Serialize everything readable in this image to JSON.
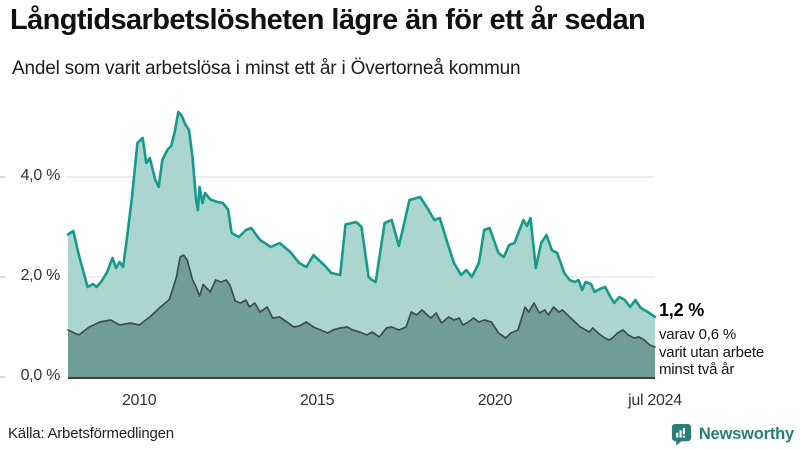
{
  "header": {
    "title": "Långtidsarbetslösheten lägre än för ett år sedan",
    "subtitle": "Andel som varit arbetslösa i minst ett år i Övertorneå kommun"
  },
  "colors": {
    "background": "#ffffff",
    "gridline": "#d9d9d9",
    "axis": "#39423f",
    "tick": "#b0b0b0",
    "brand_teal": "#2a7e78"
  },
  "chart_data": {
    "type": "area",
    "title": "Långtidsarbetslösheten lägre än för ett år sedan",
    "subtitle": "Andel som varit arbetslösa i minst ett år i Övertorneå kommun",
    "grid": "horizontal-only",
    "legend": "none",
    "x_axis": {
      "range": [
        2008.0,
        2024.5
      ],
      "ticks": [
        {
          "label": "2010",
          "t": 2010.0
        },
        {
          "label": "2015",
          "t": 2015.0
        },
        {
          "label": "2020",
          "t": 2020.0
        },
        {
          "label": "jul 2024",
          "t": 2024.5
        }
      ]
    },
    "y_axis": {
      "unit": "%",
      "range": [
        0,
        5.44
      ],
      "ticks": [
        {
          "label": "0,0 %",
          "v": 0
        },
        {
          "label": "2,0 %",
          "v": 2
        },
        {
          "label": "4,0 %",
          "v": 4
        }
      ]
    },
    "annotation": {
      "value_label": "1,2 %",
      "lines": [
        "varav 0,6 %",
        "varit utan arbete",
        "minst två år"
      ]
    },
    "series": [
      {
        "id": "minst-ett-ar",
        "name": "Arbetslösa minst ett år",
        "color": "#17998d",
        "fill": "#aad6cf",
        "stroke_width": 2.6,
        "last_value": "1,2 %",
        "points": [
          [
            2008.0,
            2.85
          ],
          [
            2008.15,
            2.92
          ],
          [
            2008.3,
            2.45
          ],
          [
            2008.55,
            1.8
          ],
          [
            2008.7,
            1.86
          ],
          [
            2008.8,
            1.8
          ],
          [
            2008.95,
            1.92
          ],
          [
            2009.1,
            2.1
          ],
          [
            2009.25,
            2.38
          ],
          [
            2009.35,
            2.18
          ],
          [
            2009.45,
            2.3
          ],
          [
            2009.55,
            2.2
          ],
          [
            2009.65,
            2.74
          ],
          [
            2009.8,
            3.6
          ],
          [
            2009.95,
            4.68
          ],
          [
            2010.1,
            4.78
          ],
          [
            2010.2,
            4.28
          ],
          [
            2010.3,
            4.38
          ],
          [
            2010.45,
            3.95
          ],
          [
            2010.55,
            3.8
          ],
          [
            2010.65,
            4.34
          ],
          [
            2010.8,
            4.55
          ],
          [
            2010.9,
            4.62
          ],
          [
            2011.0,
            4.9
          ],
          [
            2011.1,
            5.3
          ],
          [
            2011.2,
            5.22
          ],
          [
            2011.3,
            5.05
          ],
          [
            2011.4,
            4.94
          ],
          [
            2011.5,
            4.4
          ],
          [
            2011.6,
            3.54
          ],
          [
            2011.65,
            3.34
          ],
          [
            2011.7,
            3.8
          ],
          [
            2011.78,
            3.48
          ],
          [
            2011.85,
            3.68
          ],
          [
            2012.0,
            3.55
          ],
          [
            2012.2,
            3.5
          ],
          [
            2012.35,
            3.48
          ],
          [
            2012.5,
            3.35
          ],
          [
            2012.6,
            2.88
          ],
          [
            2012.8,
            2.8
          ],
          [
            2013.0,
            2.94
          ],
          [
            2013.15,
            2.98
          ],
          [
            2013.4,
            2.74
          ],
          [
            2013.7,
            2.6
          ],
          [
            2013.95,
            2.68
          ],
          [
            2014.25,
            2.5
          ],
          [
            2014.5,
            2.28
          ],
          [
            2014.7,
            2.2
          ],
          [
            2014.9,
            2.44
          ],
          [
            2015.2,
            2.24
          ],
          [
            2015.4,
            2.08
          ],
          [
            2015.65,
            2.04
          ],
          [
            2015.8,
            3.05
          ],
          [
            2016.1,
            3.1
          ],
          [
            2016.25,
            3.0
          ],
          [
            2016.45,
            2.0
          ],
          [
            2016.55,
            1.94
          ],
          [
            2016.65,
            1.9
          ],
          [
            2016.9,
            3.08
          ],
          [
            2017.1,
            3.14
          ],
          [
            2017.3,
            2.62
          ],
          [
            2017.6,
            3.54
          ],
          [
            2017.9,
            3.6
          ],
          [
            2018.1,
            3.38
          ],
          [
            2018.3,
            3.14
          ],
          [
            2018.45,
            3.18
          ],
          [
            2018.7,
            2.6
          ],
          [
            2018.85,
            2.28
          ],
          [
            2019.05,
            2.04
          ],
          [
            2019.2,
            2.14
          ],
          [
            2019.35,
            2.0
          ],
          [
            2019.55,
            2.28
          ],
          [
            2019.7,
            2.94
          ],
          [
            2019.85,
            2.98
          ],
          [
            2020.1,
            2.48
          ],
          [
            2020.25,
            2.4
          ],
          [
            2020.4,
            2.64
          ],
          [
            2020.55,
            2.68
          ],
          [
            2020.8,
            3.14
          ],
          [
            2020.9,
            3.02
          ],
          [
            2021.0,
            3.18
          ],
          [
            2021.15,
            2.18
          ],
          [
            2021.3,
            2.68
          ],
          [
            2021.45,
            2.84
          ],
          [
            2021.6,
            2.54
          ],
          [
            2021.75,
            2.48
          ],
          [
            2021.95,
            2.08
          ],
          [
            2022.1,
            1.94
          ],
          [
            2022.25,
            1.9
          ],
          [
            2022.35,
            1.94
          ],
          [
            2022.45,
            1.74
          ],
          [
            2022.55,
            1.9
          ],
          [
            2022.7,
            1.86
          ],
          [
            2022.8,
            1.7
          ],
          [
            2022.95,
            1.76
          ],
          [
            2023.1,
            1.8
          ],
          [
            2023.25,
            1.6
          ],
          [
            2023.35,
            1.48
          ],
          [
            2023.5,
            1.6
          ],
          [
            2023.65,
            1.54
          ],
          [
            2023.8,
            1.4
          ],
          [
            2023.95,
            1.54
          ],
          [
            2024.1,
            1.38
          ],
          [
            2024.3,
            1.3
          ],
          [
            2024.5,
            1.2
          ]
        ]
      },
      {
        "id": "minst-tva-ar",
        "name": "Arbetslösa minst två år",
        "color": "#3c4e4b",
        "fill": "#709e97",
        "stroke_width": 1.7,
        "last_value": "0,6 %",
        "points": [
          [
            2008.0,
            0.94
          ],
          [
            2008.3,
            0.84
          ],
          [
            2008.6,
            1.0
          ],
          [
            2008.9,
            1.1
          ],
          [
            2009.2,
            1.14
          ],
          [
            2009.45,
            1.04
          ],
          [
            2009.75,
            1.08
          ],
          [
            2010.0,
            1.04
          ],
          [
            2010.3,
            1.2
          ],
          [
            2010.6,
            1.4
          ],
          [
            2010.85,
            1.55
          ],
          [
            2011.05,
            2.0
          ],
          [
            2011.15,
            2.4
          ],
          [
            2011.25,
            2.44
          ],
          [
            2011.35,
            2.34
          ],
          [
            2011.5,
            1.95
          ],
          [
            2011.6,
            1.8
          ],
          [
            2011.7,
            1.62
          ],
          [
            2011.8,
            1.85
          ],
          [
            2012.0,
            1.7
          ],
          [
            2012.15,
            1.94
          ],
          [
            2012.3,
            1.9
          ],
          [
            2012.45,
            1.94
          ],
          [
            2012.55,
            1.84
          ],
          [
            2012.7,
            1.52
          ],
          [
            2012.85,
            1.48
          ],
          [
            2013.0,
            1.54
          ],
          [
            2013.1,
            1.4
          ],
          [
            2013.25,
            1.48
          ],
          [
            2013.4,
            1.3
          ],
          [
            2013.6,
            1.4
          ],
          [
            2013.75,
            1.18
          ],
          [
            2013.95,
            1.2
          ],
          [
            2014.15,
            1.1
          ],
          [
            2014.35,
            1.0
          ],
          [
            2014.5,
            1.02
          ],
          [
            2014.7,
            1.1
          ],
          [
            2014.9,
            1.0
          ],
          [
            2015.1,
            0.94
          ],
          [
            2015.3,
            0.88
          ],
          [
            2015.45,
            0.94
          ],
          [
            2015.65,
            0.98
          ],
          [
            2015.85,
            1.0
          ],
          [
            2016.0,
            0.94
          ],
          [
            2016.2,
            0.9
          ],
          [
            2016.4,
            0.84
          ],
          [
            2016.55,
            0.9
          ],
          [
            2016.75,
            0.8
          ],
          [
            2016.95,
            0.98
          ],
          [
            2017.1,
            1.0
          ],
          [
            2017.3,
            0.94
          ],
          [
            2017.5,
            1.0
          ],
          [
            2017.65,
            1.3
          ],
          [
            2017.8,
            1.24
          ],
          [
            2017.95,
            1.34
          ],
          [
            2018.1,
            1.24
          ],
          [
            2018.2,
            1.18
          ],
          [
            2018.35,
            1.28
          ],
          [
            2018.5,
            1.08
          ],
          [
            2018.7,
            1.2
          ],
          [
            2018.85,
            1.14
          ],
          [
            2019.0,
            1.18
          ],
          [
            2019.1,
            1.04
          ],
          [
            2019.25,
            1.1
          ],
          [
            2019.4,
            1.18
          ],
          [
            2019.55,
            1.1
          ],
          [
            2019.7,
            1.14
          ],
          [
            2019.9,
            1.1
          ],
          [
            2020.1,
            0.88
          ],
          [
            2020.3,
            0.78
          ],
          [
            2020.45,
            0.88
          ],
          [
            2020.65,
            0.94
          ],
          [
            2020.85,
            1.4
          ],
          [
            2020.95,
            1.3
          ],
          [
            2021.1,
            1.48
          ],
          [
            2021.25,
            1.28
          ],
          [
            2021.4,
            1.34
          ],
          [
            2021.5,
            1.24
          ],
          [
            2021.65,
            1.4
          ],
          [
            2021.8,
            1.3
          ],
          [
            2021.9,
            1.34
          ],
          [
            2022.1,
            1.2
          ],
          [
            2022.25,
            1.1
          ],
          [
            2022.4,
            1.0
          ],
          [
            2022.55,
            0.94
          ],
          [
            2022.65,
            0.9
          ],
          [
            2022.75,
            0.98
          ],
          [
            2022.9,
            0.88
          ],
          [
            2023.05,
            0.8
          ],
          [
            2023.2,
            0.74
          ],
          [
            2023.3,
            0.78
          ],
          [
            2023.45,
            0.88
          ],
          [
            2023.6,
            0.94
          ],
          [
            2023.75,
            0.84
          ],
          [
            2023.9,
            0.78
          ],
          [
            2024.05,
            0.8
          ],
          [
            2024.2,
            0.74
          ],
          [
            2024.35,
            0.64
          ],
          [
            2024.5,
            0.6
          ]
        ]
      }
    ]
  },
  "footer": {
    "source": "Källa: Arbetsförmedlingen",
    "brand": "Newsworthy"
  }
}
